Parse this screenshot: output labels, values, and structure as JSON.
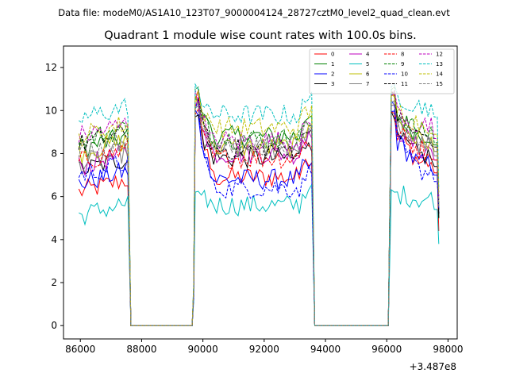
{
  "header": {
    "suptitle": "Data file: modeM0/AS1A10_123T07_9000004124_28727cztM0_level2_quad_clean.evt",
    "title": "Quadrant 1 module wise count rates with 100.0s bins."
  },
  "chart_data": {
    "type": "line",
    "title": "Quadrant 1 module wise count rates with 100.0s bins.",
    "xlabel": "",
    "ylabel": "",
    "x_offset_label": "+3.487e8",
    "x_offset": 348700000,
    "xlim": [
      85450,
      98300
    ],
    "ylim": [
      -0.62,
      13.0
    ],
    "xticks": [
      86000,
      88000,
      90000,
      92000,
      94000,
      96000,
      98000
    ],
    "xtick_labels": [
      "86000",
      "88000",
      "90000",
      "92000",
      "94000",
      "96000",
      "98000"
    ],
    "yticks": [
      0,
      2,
      4,
      6,
      8,
      10,
      12
    ],
    "ytick_labels": [
      "0",
      "2",
      "4",
      "6",
      "8",
      "10",
      "12"
    ],
    "legend_location": "top-right",
    "segments": [
      {
        "start": 85950,
        "end": 87550,
        "drop_to": 87650
      },
      {
        "start": 89750,
        "end": 93550,
        "rise_from": 89650,
        "drop_to": 93650
      },
      {
        "start": 96150,
        "end": 97650,
        "rise_from": 96050
      }
    ],
    "series": [
      {
        "name": "0",
        "color": "#ff0000",
        "dash": "solid",
        "level_a": 6.2,
        "level_b": 6.9,
        "level_c": 7.6,
        "peak": 11.0,
        "end": 4.4
      },
      {
        "name": "1",
        "color": "#008000",
        "dash": "solid",
        "level_a": 8.2,
        "level_b": 8.8,
        "level_c": 8.9,
        "peak": 11.0,
        "end": 5.0
      },
      {
        "name": "2",
        "color": "#0000ff",
        "dash": "solid",
        "level_a": 6.6,
        "level_b": 6.8,
        "level_c": 7.5,
        "peak": 10.2,
        "end": 5.2
      },
      {
        "name": "3",
        "color": "#000000",
        "dash": "solid",
        "level_a": 7.2,
        "level_b": 7.8,
        "level_c": 7.9,
        "peak": 10.0,
        "end": 5.0
      },
      {
        "name": "4",
        "color": "#bf00bf",
        "dash": "solid",
        "level_a": 7.4,
        "level_b": 8.0,
        "level_c": 8.2,
        "peak": 10.6,
        "end": 5.4
      },
      {
        "name": "5",
        "color": "#00bfbf",
        "dash": "solid",
        "level_a": 5.1,
        "level_b": 5.6,
        "level_c": 5.9,
        "peak": 6.5,
        "end": 3.8
      },
      {
        "name": "6",
        "color": "#bfbf00",
        "dash": "solid",
        "level_a": 8.0,
        "level_b": 8.3,
        "level_c": 8.6,
        "peak": 10.8,
        "end": 5.6
      },
      {
        "name": "7",
        "color": "#808080",
        "dash": "solid",
        "level_a": 7.5,
        "level_b": 8.2,
        "level_c": 8.4,
        "peak": 10.6,
        "end": 5.4
      },
      {
        "name": "8",
        "color": "#ff0000",
        "dash": "dashed",
        "level_a": 7.6,
        "level_b": 7.8,
        "level_c": 8.2,
        "peak": 10.2,
        "end": 5.8
      },
      {
        "name": "9",
        "color": "#008000",
        "dash": "dashed",
        "level_a": 8.6,
        "level_b": 8.7,
        "level_c": 9.0,
        "peak": 11.2,
        "end": 5.6
      },
      {
        "name": "10",
        "color": "#0000ff",
        "dash": "dashed",
        "level_a": 7.0,
        "level_b": 6.4,
        "level_c": 7.2,
        "peak": 10.6,
        "end": 5.4
      },
      {
        "name": "11",
        "color": "#000000",
        "dash": "dashed",
        "level_a": 8.4,
        "level_b": 8.2,
        "level_c": 8.8,
        "peak": 11.0,
        "end": 5.2
      },
      {
        "name": "12",
        "color": "#bf00bf",
        "dash": "dashed",
        "level_a": 8.8,
        "level_b": 8.6,
        "level_c": 9.2,
        "peak": 11.0,
        "end": 6.0
      },
      {
        "name": "13",
        "color": "#00bfbf",
        "dash": "dashed",
        "level_a": 9.6,
        "level_b": 9.8,
        "level_c": 10.2,
        "peak": 11.5,
        "end": 6.4
      },
      {
        "name": "14",
        "color": "#bfbf00",
        "dash": "dashed",
        "level_a": 8.8,
        "level_b": 9.2,
        "level_c": 9.4,
        "peak": 11.0,
        "end": 6.2
      },
      {
        "name": "15",
        "color": "#808080",
        "dash": "dashed",
        "level_a": 8.1,
        "level_b": 8.4,
        "level_c": 8.6,
        "peak": 10.6,
        "end": 5.5
      }
    ]
  }
}
